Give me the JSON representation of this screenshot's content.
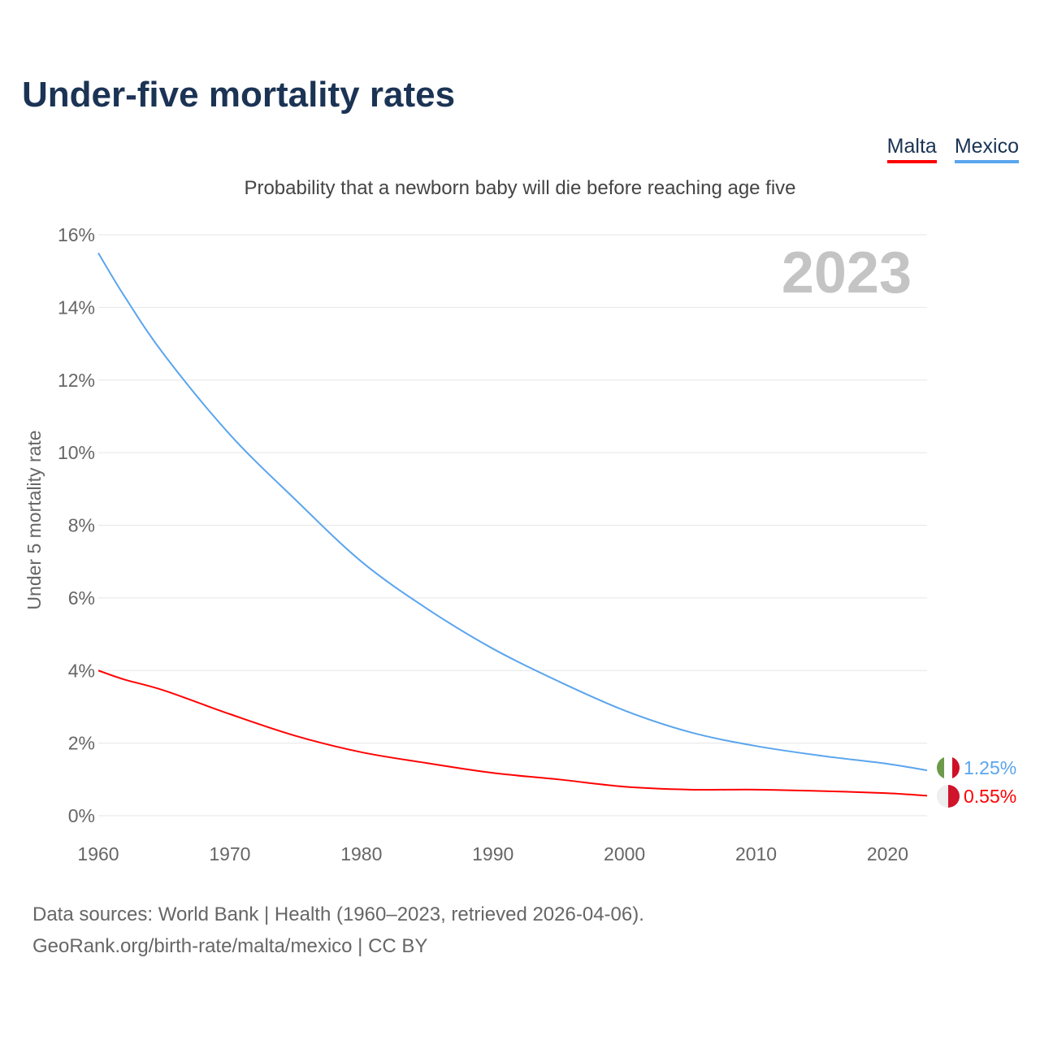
{
  "title": "Under-five mortality rates",
  "subtitle": "Probability that a newborn baby will die before reaching age five",
  "legend": [
    {
      "name": "Malta",
      "color": "#ff0000"
    },
    {
      "name": "Mexico",
      "color": "#5aa5ee"
    }
  ],
  "year_label": "2023",
  "footer": {
    "line1": "Data sources: World Bank | Health (1960–2023, retrieved 2026-04-06).",
    "line2": "GeoRank.org/birth-rate/malta/mexico | CC BY"
  },
  "chart_data": {
    "type": "line",
    "title": "Under-five mortality rates",
    "ylabel": "Under 5 mortality rate",
    "xlabel": "",
    "xlim": [
      1960,
      2023
    ],
    "ylim": [
      0,
      16
    ],
    "x_ticks": [
      "1960",
      "1970",
      "1980",
      "1990",
      "2000",
      "2010",
      "2020"
    ],
    "y_ticks": [
      "0%",
      "2%",
      "4%",
      "6%",
      "8%",
      "10%",
      "12%",
      "14%",
      "16%"
    ],
    "grid": true,
    "legend_position": "top-right",
    "x": [
      1960,
      1962,
      1965,
      1970,
      1975,
      1980,
      1985,
      1990,
      1995,
      2000,
      2005,
      2010,
      2015,
      2020,
      2023
    ],
    "series": [
      {
        "name": "Mexico",
        "color": "#5aa5ee",
        "end_label": "1.25%",
        "values": [
          15.5,
          14.3,
          12.7,
          10.5,
          8.7,
          7.0,
          5.7,
          4.6,
          3.7,
          2.9,
          2.3,
          1.92,
          1.65,
          1.43,
          1.25
        ]
      },
      {
        "name": "Malta",
        "color": "#ff0000",
        "end_label": "0.55%",
        "values": [
          4.0,
          3.75,
          3.45,
          2.8,
          2.2,
          1.75,
          1.45,
          1.18,
          1.0,
          0.8,
          0.72,
          0.72,
          0.68,
          0.62,
          0.55
        ]
      }
    ]
  }
}
